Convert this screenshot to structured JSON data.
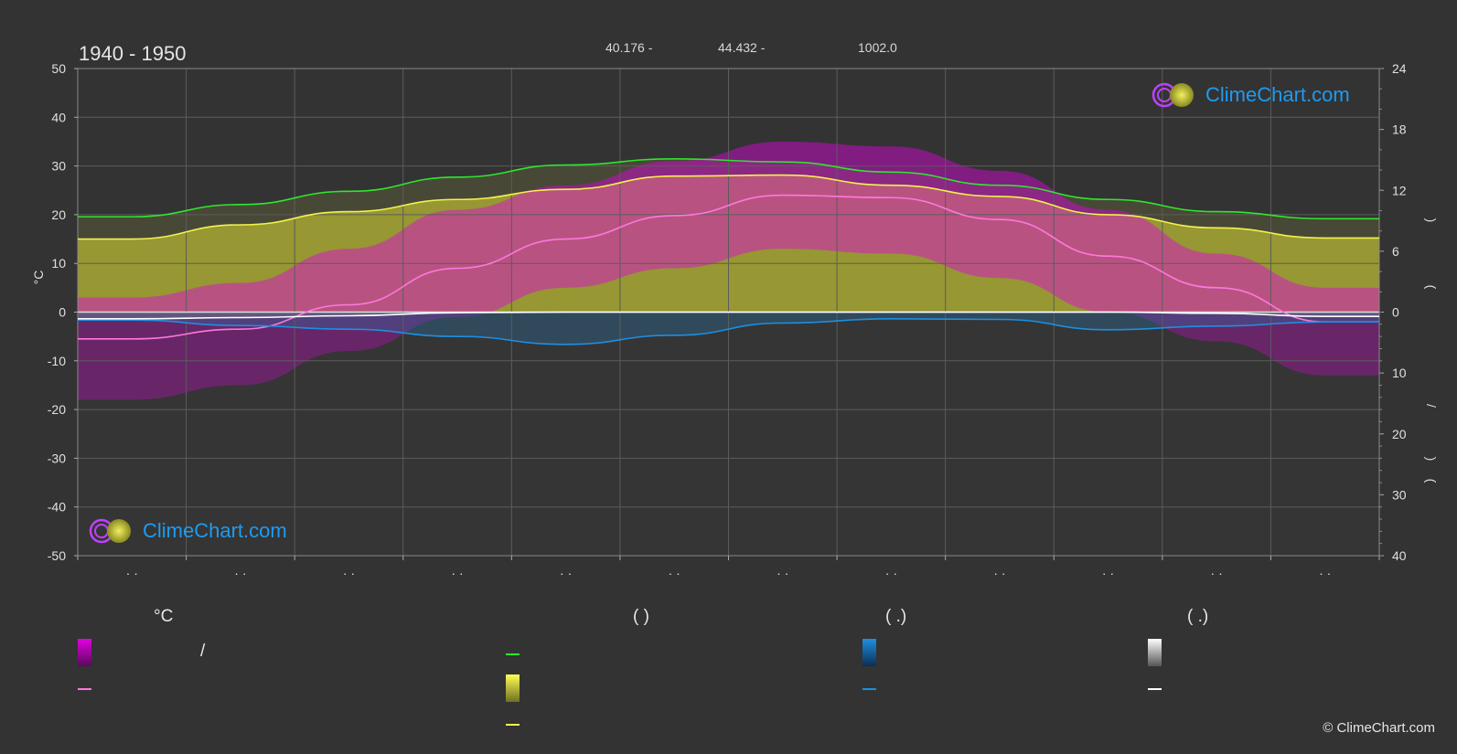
{
  "header": {
    "years": "1940 - 1950",
    "latitude": "40.176 -",
    "longitude": "44.432 -",
    "elevation": "1002.0"
  },
  "brand": {
    "logo_text": "ClimeChart.com",
    "copyright": "© ClimeChart.com"
  },
  "legend": {
    "temp_unit": "°C",
    "sun_paren": "(          )",
    "rain_paren": "(    .)",
    "snow_paren": "(    .)",
    "slash": "/"
  },
  "colors": {
    "background": "#333333",
    "day_length": "#2ee62e",
    "sunshine": "#f2f24d",
    "temp_mean": "#ff77dd",
    "precip": "#1e8fe0",
    "snow": "#ffffff",
    "temp_range": "#e100e1",
    "sun_fill": "#a6a633",
    "logo": "#1e9bf0"
  },
  "chart_data": {
    "type": "line",
    "months": 12,
    "y_left": {
      "label": "°C",
      "min": -50,
      "max": 50,
      "ticks": [
        50,
        40,
        30,
        20,
        10,
        0,
        -10,
        -20,
        -30,
        -40,
        -50
      ]
    },
    "y_right_top": {
      "min": 0,
      "max": 24,
      "ticks": [
        24,
        18,
        12,
        6,
        0
      ]
    },
    "y_right_bottom": {
      "min": 0,
      "max": 40,
      "ticks": [
        0,
        10,
        20,
        30,
        40
      ]
    },
    "x_tick_labels": [
      "· ·",
      "· ·",
      "· ·",
      "· ·",
      "· ·",
      "· ·",
      "· ·",
      "· ·",
      "· ·",
      "· ·",
      "· ·",
      "· ·"
    ],
    "right_axis_marks": [
      ")",
      "(",
      "/",
      ")",
      "("
    ],
    "series": [
      {
        "key": "day_length",
        "axis": "right_top",
        "values": [
          9.4,
          10.6,
          11.9,
          13.3,
          14.5,
          15.1,
          14.8,
          13.8,
          12.5,
          11.1,
          9.9,
          9.2
        ]
      },
      {
        "key": "sunshine",
        "axis": "right_top",
        "values": [
          7.2,
          8.6,
          9.9,
          11.1,
          12.1,
          13.4,
          13.5,
          12.5,
          11.4,
          9.6,
          8.3,
          7.3
        ]
      },
      {
        "key": "temp_mean",
        "axis": "left",
        "values": [
          -5.5,
          -3.5,
          1.5,
          9.0,
          15.0,
          19.8,
          24.0,
          23.5,
          19.0,
          11.5,
          5.0,
          -2.0
        ]
      },
      {
        "key": "precip",
        "axis": "right_bottom",
        "values": [
          1.3,
          2.2,
          2.8,
          4.0,
          5.3,
          3.8,
          1.8,
          1.1,
          1.2,
          2.9,
          2.3,
          1.6
        ]
      },
      {
        "key": "snow",
        "axis": "right_bottom",
        "values": [
          1.1,
          0.9,
          0.6,
          0.1,
          0,
          0,
          0,
          0,
          0,
          0,
          0.2,
          0.7
        ]
      }
    ],
    "temp_band": {
      "max": [
        3,
        6,
        13,
        21,
        26,
        31,
        35,
        34,
        29,
        21,
        12,
        5
      ],
      "min": [
        -18,
        -15,
        -8,
        -1,
        5,
        9,
        13,
        12,
        7,
        0,
        -6,
        -13
      ]
    }
  }
}
